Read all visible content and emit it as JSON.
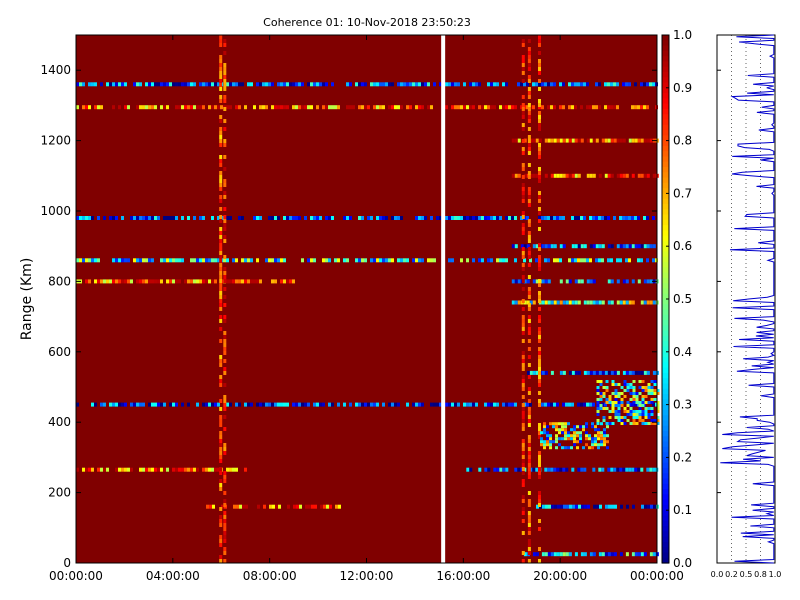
{
  "chart_data": [
    {
      "type": "heatmap",
      "title": "Coherence 01: 10-Nov-2018 23:50:23",
      "xlabel": "",
      "ylabel": "Range (Km)",
      "xlim": [
        "00:00:00",
        "24:00:00"
      ],
      "ylim": [
        0,
        1500
      ],
      "xticks": [
        "00:00:00",
        "04:00:00",
        "08:00:00",
        "12:00:00",
        "16:00:00",
        "20:00:00",
        "00:00:00"
      ],
      "yticks": [
        0,
        200,
        400,
        600,
        800,
        1000,
        1200,
        1400
      ],
      "background_value": 1.0,
      "data_gap_time": "15:10:00",
      "bands": [
        {
          "range_km": 1360,
          "value": 0.2,
          "from": "00:00:00",
          "to": "24:00:00"
        },
        {
          "range_km": 1295,
          "value": 0.8,
          "from": "00:00:00",
          "to": "24:00:00"
        },
        {
          "range_km": 980,
          "value": 0.2,
          "from": "00:00:00",
          "to": "24:00:00"
        },
        {
          "range_km": 860,
          "value": 0.4,
          "from": "00:00:00",
          "to": "24:00:00"
        },
        {
          "range_km": 800,
          "value": 0.8,
          "from": "00:00:00",
          "to": "09:00:00"
        },
        {
          "range_km": 800,
          "value": 0.3,
          "from": "18:00:00",
          "to": "24:00:00"
        },
        {
          "range_km": 450,
          "value": 0.15,
          "from": "00:00:00",
          "to": "24:00:00"
        },
        {
          "range_km": 265,
          "value": 0.8,
          "from": "00:00:00",
          "to": "07:00:00"
        },
        {
          "range_km": 265,
          "value": 0.2,
          "from": "16:00:00",
          "to": "24:00:00"
        },
        {
          "range_km": 160,
          "value": 0.8,
          "from": "05:00:00",
          "to": "11:00:00"
        },
        {
          "range_km": 160,
          "value": 0.2,
          "from": "19:00:00",
          "to": "24:00:00"
        },
        {
          "range_km": 25,
          "value": 0.3,
          "from": "18:30:00",
          "to": "24:00:00"
        },
        {
          "range_km": 1200,
          "value": 0.8,
          "from": "18:00:00",
          "to": "24:00:00"
        },
        {
          "range_km": 1100,
          "value": 0.8,
          "from": "18:00:00",
          "to": "24:00:00"
        },
        {
          "range_km": 900,
          "value": 0.2,
          "from": "18:00:00",
          "to": "24:00:00"
        },
        {
          "range_km": 740,
          "value": 0.5,
          "from": "18:00:00",
          "to": "24:00:00"
        },
        {
          "range_km": 540,
          "value": 0.2,
          "from": "18:30:00",
          "to": "24:00:00"
        }
      ],
      "columns": [
        {
          "time": "05:55:00",
          "value": 0.8
        },
        {
          "time": "06:05:00",
          "value": 0.85
        },
        {
          "time": "18:25:00",
          "value": 0.85
        },
        {
          "time": "18:40:00",
          "value": 0.8
        },
        {
          "time": "19:05:00",
          "value": 0.8
        }
      ],
      "blobs": [
        {
          "from": "19:10:00",
          "to": "22:00:00",
          "range_from": 330,
          "range_to": 400,
          "value": 0.45
        },
        {
          "from": "21:30:00",
          "to": "24:00:00",
          "range_from": 400,
          "range_to": 520,
          "value": 0.45
        }
      ]
    },
    {
      "type": "line",
      "xlim": [
        0.0,
        1.0
      ],
      "xticks": [
        "0.0",
        "0.2",
        "0.5",
        "0.8",
        "1.0"
      ],
      "ylim": [
        0,
        1500
      ],
      "description_of_values": "mean coherence per range gate, mostly near 1.0 with dips"
    }
  ],
  "colorbar": {
    "ticks": [
      "1.0",
      "0.9",
      "0.8",
      "0.7",
      "0.6",
      "0.5",
      "0.4",
      "0.3",
      "0.2",
      "0.1",
      "0.0"
    ]
  }
}
